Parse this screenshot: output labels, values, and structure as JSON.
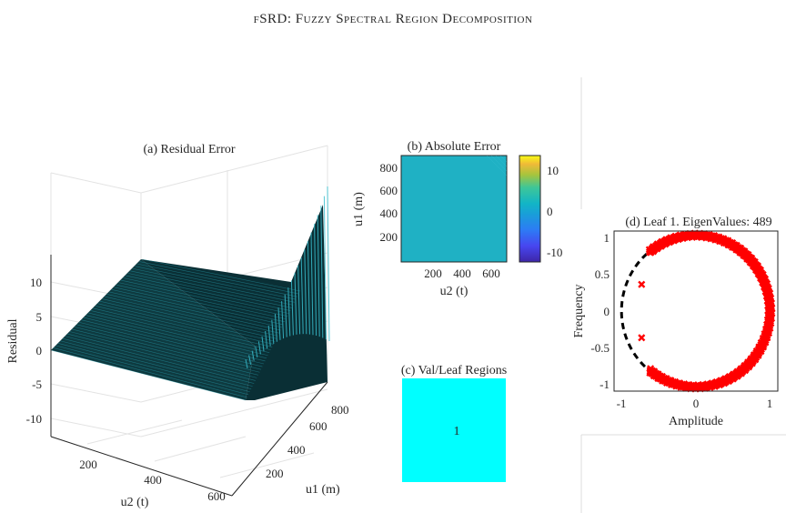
{
  "title": "fSRD: Fuzzy Spectral Region Decomposition",
  "chart_data": [
    {
      "panel": "a",
      "type": "surface",
      "title": "(a) Residual Error",
      "xlabel": "u2 (t)",
      "ylabel": "u1 (m)",
      "zlabel": "Residual",
      "x_ticks": [
        "200",
        "400",
        "600"
      ],
      "y_ticks": [
        "200",
        "400",
        "600",
        "800"
      ],
      "z_ticks": [
        "-10",
        "-5",
        "0",
        "5",
        "10"
      ],
      "xlim": [
        0,
        700
      ],
      "ylim": [
        0,
        900
      ],
      "zlim": [
        -12,
        14
      ],
      "grid": true,
      "surface_color": "#0d3a40",
      "edge_color": "#2fb8c8",
      "description_values": {
        "max_residual": 13.5,
        "min_residual": -10.5
      }
    },
    {
      "panel": "b",
      "type": "heatmap",
      "title": "(b) Absolute Error",
      "xlabel": "u2 (t)",
      "ylabel": "u1 (m)",
      "x_ticks": [
        "200",
        "400",
        "600"
      ],
      "y_ticks": [
        "200",
        "400",
        "600",
        "800"
      ],
      "xlim": [
        0,
        700
      ],
      "ylim": [
        0,
        900
      ],
      "colorbar_ticks": [
        "-10",
        "0",
        "10"
      ],
      "clim": [
        -12,
        14
      ],
      "colormap": "parula",
      "fill_color": "#1fb1c4"
    },
    {
      "panel": "c",
      "type": "heatmap",
      "title": "(c) Val/Leaf Regions",
      "regions": [
        {
          "label": "1",
          "color": "#00ffff"
        }
      ]
    },
    {
      "panel": "d",
      "type": "scatter",
      "title": "(d) Leaf 1. EigenValues: 489",
      "xlabel": "Amplitude",
      "ylabel": "Frequency",
      "x_ticks": [
        "-1",
        "0",
        "1"
      ],
      "y_ticks": [
        "-1",
        "-0.5",
        "0",
        "0.5",
        "1"
      ],
      "xlim": [
        -1.1,
        1.1
      ],
      "ylim": [
        -1.05,
        1.05
      ],
      "marker": "x",
      "marker_color": "#ff0000",
      "eigenvalue_count": 489,
      "unit_circle": {
        "style": "dashed",
        "color": "#000000"
      },
      "outliers": [
        {
          "x": -0.73,
          "y": 0.35
        },
        {
          "x": -0.73,
          "y": -0.35
        }
      ]
    }
  ]
}
